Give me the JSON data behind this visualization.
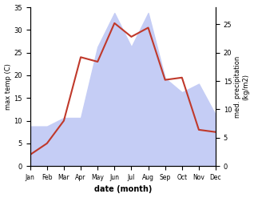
{
  "months": [
    "Jan",
    "Feb",
    "Mar",
    "Apr",
    "May",
    "Jun",
    "Jul",
    "Aug",
    "Sep",
    "Oct",
    "Nov",
    "Dec"
  ],
  "temp": [
    2.5,
    5.0,
    10.0,
    24.0,
    23.0,
    31.5,
    28.5,
    30.5,
    19.0,
    19.5,
    8.0,
    7.5
  ],
  "precip": [
    7.0,
    7.0,
    8.5,
    8.5,
    21.0,
    27.0,
    21.0,
    27.0,
    15.5,
    13.0,
    14.5,
    9.0
  ],
  "temp_color": "#c0392b",
  "precip_fill_color": "#c5cdf5",
  "temp_ylim": [
    0,
    35
  ],
  "precip_ylim": [
    0,
    28
  ],
  "temp_yticks": [
    0,
    5,
    10,
    15,
    20,
    25,
    30,
    35
  ],
  "precip_yticks": [
    0,
    5,
    10,
    15,
    20,
    25
  ],
  "xlabel": "date (month)",
  "ylabel_left": "max temp (C)",
  "ylabel_right": "med. precipitation\n(kg/m2)",
  "bg_color": "#ffffff"
}
